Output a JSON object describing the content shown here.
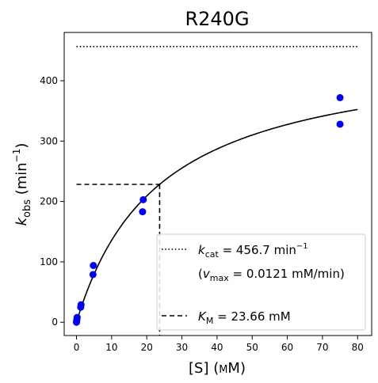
{
  "chart_data": {
    "type": "scatter",
    "title": "R240G",
    "xlabel": {
      "main": "[S] (",
      "unit": "mM",
      "close": ")"
    },
    "ylabel": {
      "k": "k",
      "sub": "obs",
      "pre": " (min",
      "sup": "−1",
      "post": ")"
    },
    "xlim": [
      -3.5,
      84
    ],
    "ylim": [
      -22,
      480
    ],
    "xticks": [
      0,
      10,
      20,
      30,
      40,
      50,
      60,
      70,
      80
    ],
    "xtick_labels": [
      "0",
      "10",
      "20",
      "30",
      "40",
      "50",
      "60",
      "70",
      "80"
    ],
    "yticks": [
      0,
      100,
      200,
      300,
      400
    ],
    "ytick_labels": [
      "0",
      "100",
      "200",
      "300",
      "400"
    ],
    "points": {
      "color": "#0000ff",
      "x": [
        0,
        0.05,
        0.1,
        0.2,
        1.2,
        1.3,
        4.7,
        4.8,
        18.8,
        19.0,
        75,
        75
      ],
      "y": [
        0,
        2,
        5,
        8,
        25,
        29,
        79,
        94,
        183,
        203,
        328,
        372
      ]
    },
    "fit_curve": {
      "kcat": 456.7,
      "km": 23.66,
      "x_min": 0,
      "x_max": 80,
      "color": "#000000"
    },
    "kcat_line": {
      "y": 456.7,
      "x_start": 0,
      "x_end": 80
    },
    "km_lines": {
      "x": 23.66,
      "y": 228.35,
      "x_start": 0
    },
    "legend": {
      "placement": "lower-right",
      "kcat": {
        "k": "k",
        "sub": "cat",
        "mid": " = 456.7 min",
        "sup": "−1"
      },
      "vmax": {
        "open": "(",
        "v": "v",
        "sub": "max",
        "rest": " = 0.0121 mM/min)"
      },
      "km": {
        "k": "K",
        "sub": "M",
        "rest": " = 23.66 mM"
      }
    }
  }
}
